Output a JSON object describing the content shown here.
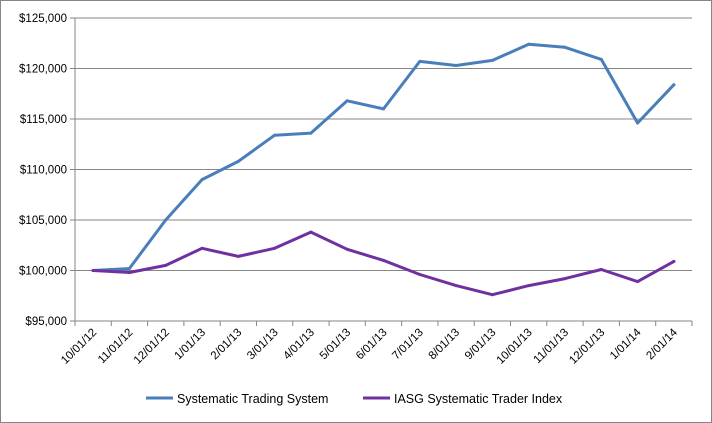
{
  "chart_data": {
    "type": "line",
    "title": "",
    "xlabel": "",
    "ylabel": "",
    "categories": [
      "10/01/12",
      "11/01/12",
      "12/01/12",
      "1/01/13",
      "2/01/13",
      "3/01/13",
      "4/01/13",
      "5/01/13",
      "6/01/13",
      "7/01/13",
      "8/01/13",
      "9/01/13",
      "10/01/13",
      "11/01/13",
      "12/01/13",
      "1/01/14",
      "2/01/14"
    ],
    "ylim": [
      95000,
      125000
    ],
    "yticks": [
      95000,
      100000,
      105000,
      110000,
      115000,
      120000,
      125000
    ],
    "ytick_labels": [
      "$95,000",
      "$100,000",
      "$105,000",
      "$110,000",
      "$115,000",
      "$120,000",
      "$125,000"
    ],
    "grid": true,
    "legend_position": "bottom",
    "series": [
      {
        "name": "Systematic Trading System",
        "color": "#4a7ebb",
        "values": [
          100000,
          100200,
          105000,
          109000,
          110800,
          113400,
          113600,
          116800,
          116000,
          120700,
          120300,
          120800,
          122400,
          122100,
          120900,
          114600,
          118400
        ]
      },
      {
        "name": "IASG Systematic Trader Index",
        "color": "#7030a0",
        "values": [
          100000,
          99800,
          100500,
          102200,
          101400,
          102200,
          103800,
          102100,
          101000,
          99600,
          98500,
          97600,
          98500,
          99200,
          100100,
          98900,
          100900
        ]
      }
    ]
  }
}
